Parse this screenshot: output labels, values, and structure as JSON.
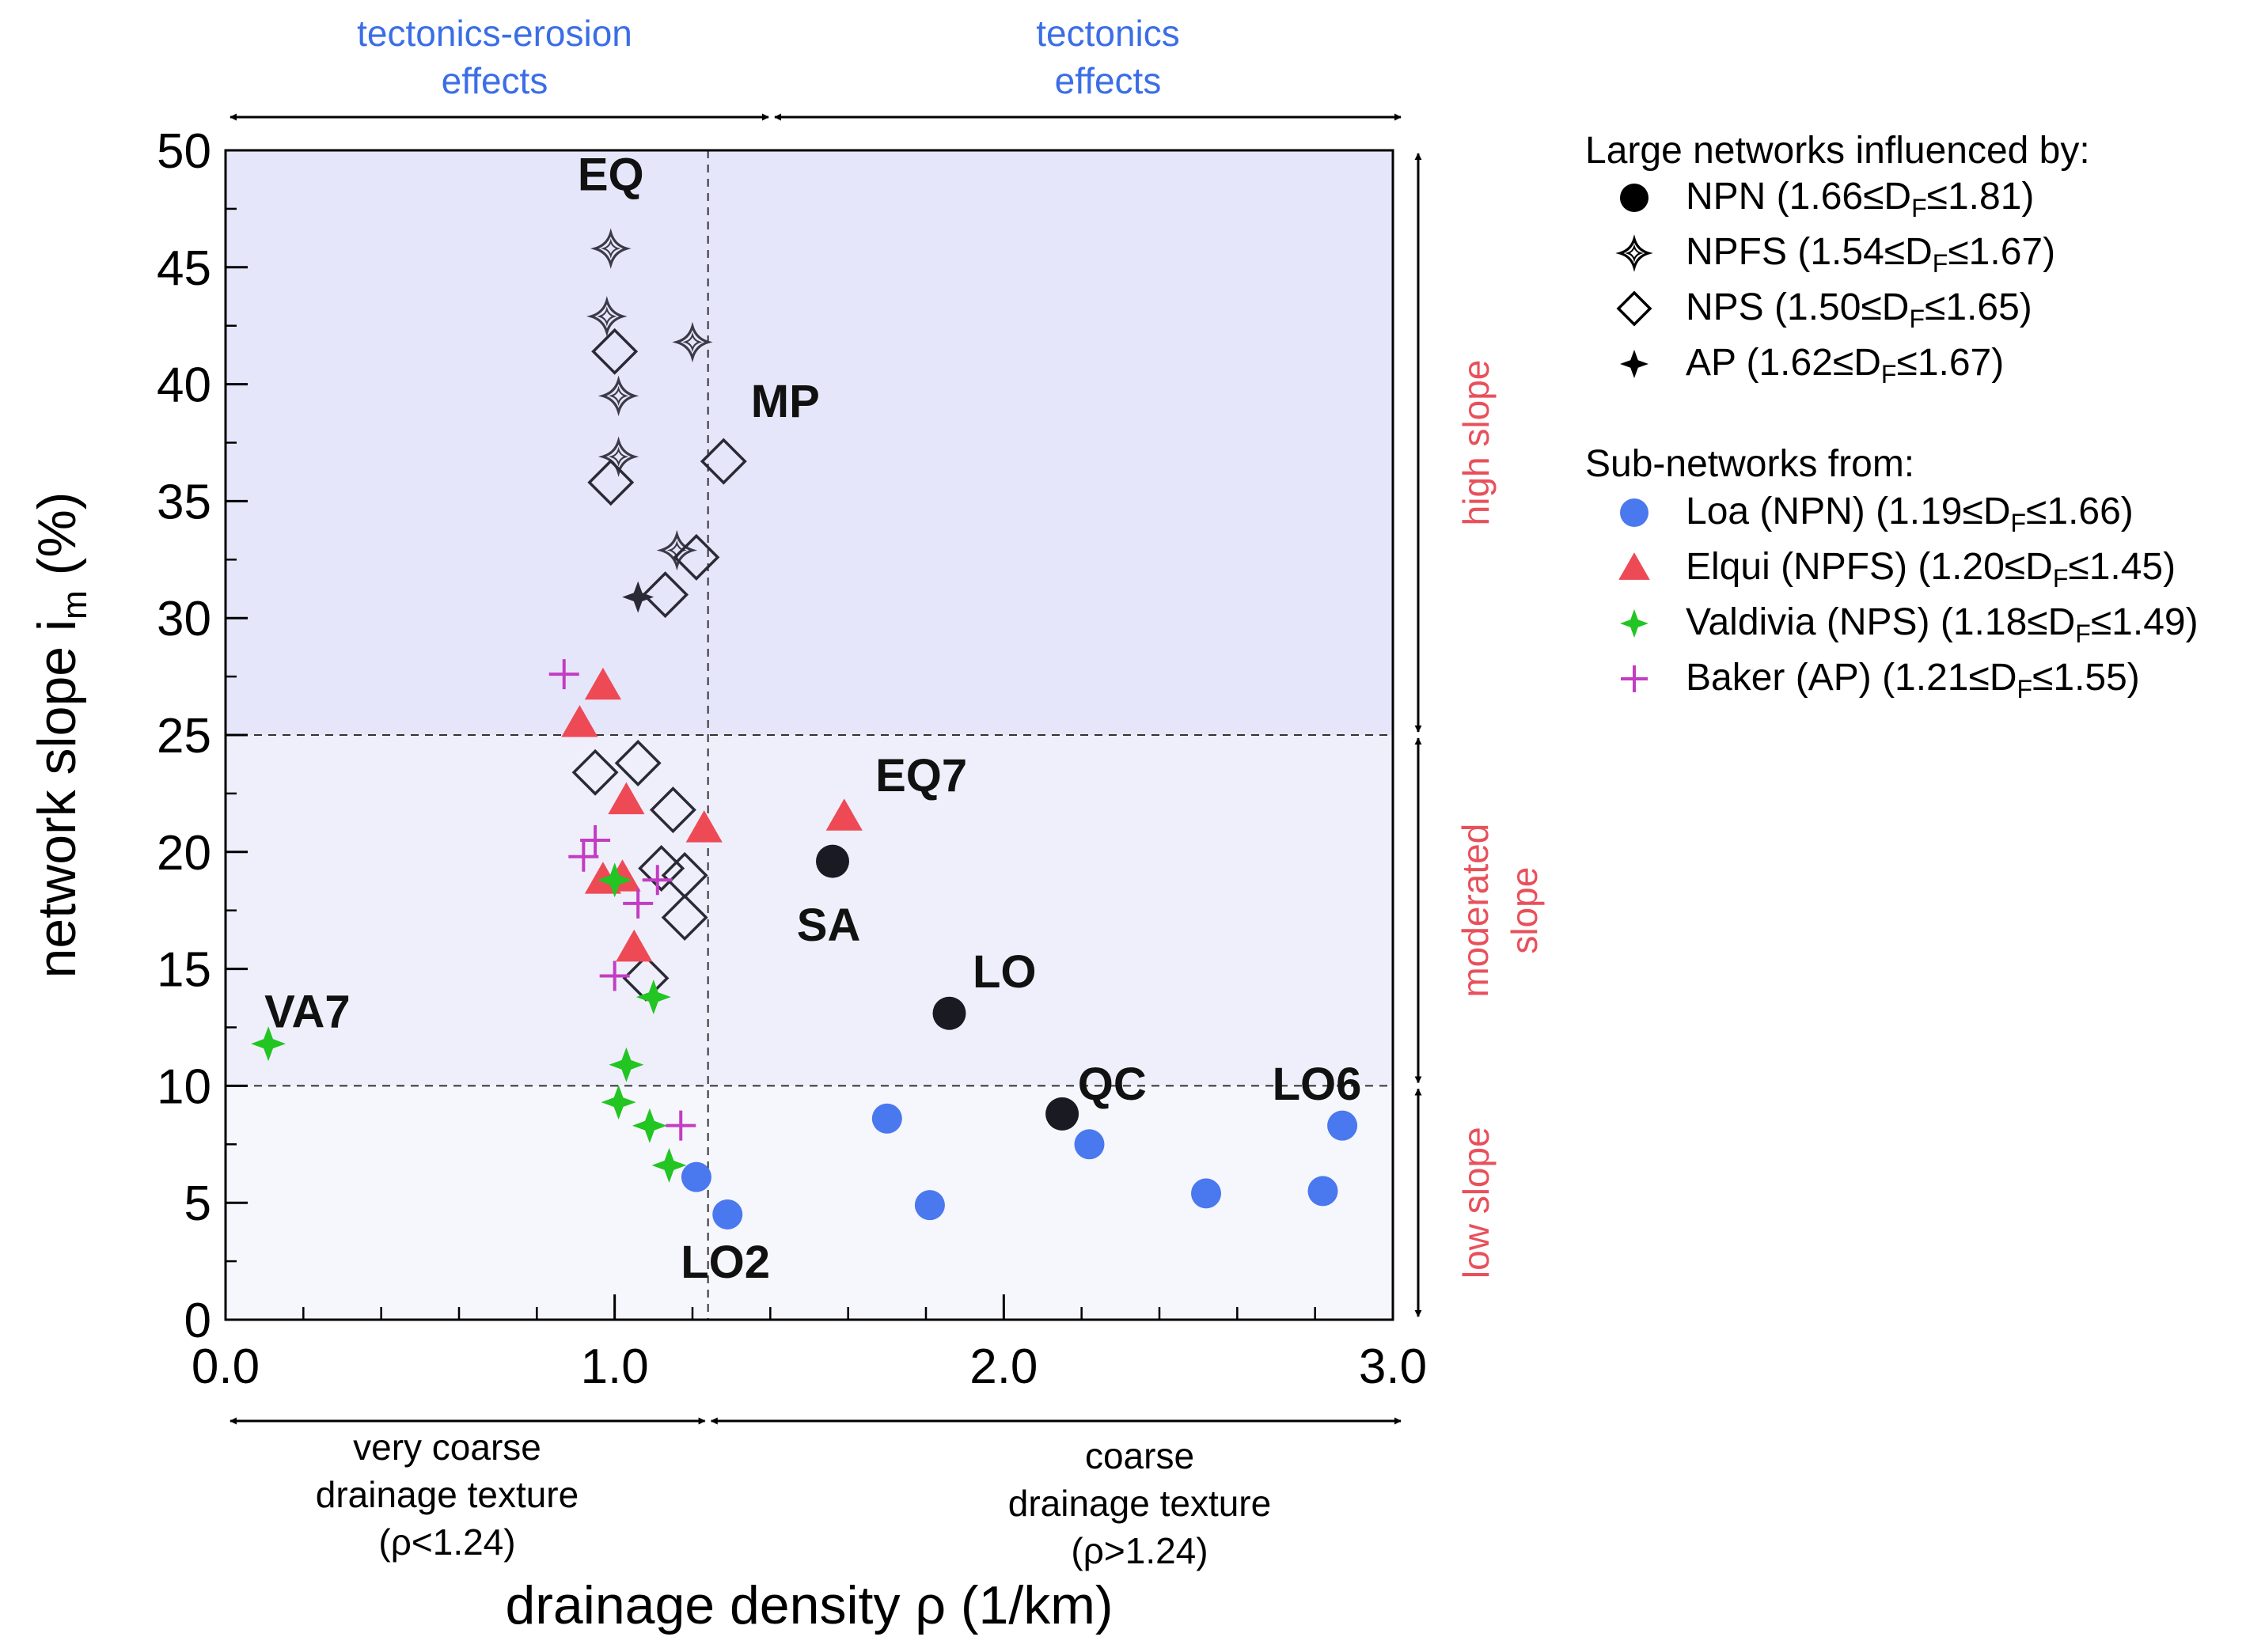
{
  "chart_data": {
    "type": "scatter",
    "xlabel": "drainage density ρ (1/km)",
    "ylabel_main": "network slope i",
    "ylabel_sub": "m",
    "ylabel_unit": " (%)",
    "xlim": [
      0,
      3.0
    ],
    "ylim": [
      0,
      50
    ],
    "x_ticks": [
      {
        "value": 0.0,
        "label": "0.0"
      },
      {
        "value": 1.0,
        "label": "1.0"
      },
      {
        "value": 2.0,
        "label": "2.0"
      },
      {
        "value": 3.0,
        "label": "3.0"
      }
    ],
    "x_minor_step": 0.2,
    "y_ticks": [
      0,
      5,
      10,
      15,
      20,
      25,
      30,
      35,
      40,
      45,
      50
    ],
    "thresholds": {
      "x": 1.24,
      "y": [
        10,
        25
      ]
    },
    "region_colors": {
      "high": "#e6e6fb",
      "moderate": "#efeffc",
      "low": "#f6f6fd"
    },
    "top_annotations": [
      {
        "lines": [
          "tectonics-erosion",
          "effects"
        ],
        "color": "#3b6ee6"
      },
      {
        "lines": [
          "tectonics",
          "effects"
        ],
        "color": "#3b6ee6"
      }
    ],
    "bottom_annotations": [
      {
        "lines": [
          "very coarse",
          "drainage texture",
          "(ρ<1.24)"
        ]
      },
      {
        "lines": [
          "coarse",
          "drainage texture",
          "(ρ>1.24)"
        ]
      }
    ],
    "right_annotations": [
      {
        "lines": [
          "high slope"
        ],
        "color": "#e8505b"
      },
      {
        "lines": [
          "moderated",
          "slope"
        ],
        "color": "#e8505b"
      },
      {
        "lines": [
          "low slope"
        ],
        "color": "#e8505b"
      }
    ],
    "legend": {
      "position": "right",
      "group1_title": "Large networks influenced by:",
      "group2_title": "Sub-networks from:",
      "group1": [
        {
          "marker": "circle",
          "color": "#000000",
          "name": "NPN",
          "dmin": "1.66",
          "dmax": "1.81"
        },
        {
          "marker": "star4",
          "color": "#000000",
          "name": "NPFS",
          "dmin": "1.54",
          "dmax": "1.67"
        },
        {
          "marker": "diamond",
          "color": "#000000",
          "name": "NPS",
          "dmin": "1.50",
          "dmax": "1.65"
        },
        {
          "marker": "star4filled",
          "color": "#000000",
          "name": "AP",
          "dmin": "1.62",
          "dmax": "1.67"
        }
      ],
      "group2": [
        {
          "marker": "circle",
          "color": "#4a78ee",
          "name": "Loa (NPN)",
          "dmin": "1.19",
          "dmax": "1.66"
        },
        {
          "marker": "triangle",
          "color": "#ee4a55",
          "name": "Elqui (NPFS)",
          "dmin": "1.20",
          "dmax": "1.45"
        },
        {
          "marker": "star4filled",
          "color": "#22c522",
          "name": "Valdivia (NPS)",
          "dmin": "1.18",
          "dmax": "1.49"
        },
        {
          "marker": "plus",
          "color": "#c23dc2",
          "name": "Baker (AP)",
          "dmin": "1.21",
          "dmax": "1.55"
        }
      ]
    },
    "series": [
      {
        "name": "NPN",
        "marker": "circle",
        "color": "#1a1a22",
        "size": 21,
        "points": [
          [
            1.56,
            19.6
          ],
          [
            1.86,
            13.1
          ],
          [
            2.15,
            8.8
          ]
        ]
      },
      {
        "name": "NPFS",
        "marker": "star4",
        "color": "#3a3a48",
        "size": 20,
        "points": [
          [
            0.99,
            45.8
          ],
          [
            0.98,
            42.9
          ],
          [
            1.01,
            39.5
          ],
          [
            1.01,
            36.9
          ],
          [
            1.2,
            41.8
          ],
          [
            1.16,
            32.9
          ]
        ]
      },
      {
        "name": "NPS",
        "marker": "diamond",
        "color": "#2a2a36",
        "size": 27,
        "points": [
          [
            1.0,
            41.4
          ],
          [
            1.28,
            36.7
          ],
          [
            0.99,
            35.8
          ],
          [
            1.21,
            32.6
          ],
          [
            1.13,
            31.0
          ],
          [
            0.95,
            23.4
          ],
          [
            1.06,
            23.8
          ],
          [
            1.15,
            21.8
          ],
          [
            1.12,
            19.3
          ],
          [
            1.18,
            19.0
          ],
          [
            1.18,
            17.2
          ],
          [
            1.08,
            14.6
          ]
        ]
      },
      {
        "name": "AP",
        "marker": "star4filled",
        "color": "#2a2a36",
        "size": 20,
        "points": [
          [
            1.06,
            30.9
          ]
        ]
      },
      {
        "name": "Loa (NPN)",
        "marker": "circle",
        "color": "#4a78ee",
        "size": 19,
        "points": [
          [
            1.21,
            6.1
          ],
          [
            1.29,
            4.5
          ],
          [
            1.7,
            8.6
          ],
          [
            1.81,
            4.9
          ],
          [
            2.22,
            7.5
          ],
          [
            2.52,
            5.4
          ],
          [
            2.82,
            5.5
          ],
          [
            2.87,
            8.3
          ]
        ]
      },
      {
        "name": "Elqui (NPFS)",
        "marker": "triangle",
        "color": "#ee4a55",
        "size": 21,
        "points": [
          [
            0.97,
            27.1
          ],
          [
            0.91,
            25.5
          ],
          [
            1.03,
            22.2
          ],
          [
            1.23,
            21.0
          ],
          [
            1.59,
            21.5
          ],
          [
            0.97,
            18.8
          ],
          [
            1.02,
            18.9
          ],
          [
            1.05,
            15.9
          ]
        ]
      },
      {
        "name": "Valdivia (NPS)",
        "marker": "star4filled",
        "color": "#22c522",
        "size": 22,
        "points": [
          [
            0.11,
            11.8
          ],
          [
            1.0,
            18.8
          ],
          [
            1.1,
            13.8
          ],
          [
            1.03,
            10.9
          ],
          [
            1.01,
            9.3
          ],
          [
            1.09,
            8.3
          ],
          [
            1.14,
            6.6
          ]
        ]
      },
      {
        "name": "Baker (AP)",
        "marker": "plus",
        "color": "#c23dc2",
        "size": 19,
        "points": [
          [
            0.87,
            27.6
          ],
          [
            0.92,
            19.8
          ],
          [
            0.95,
            20.5
          ],
          [
            1.11,
            18.8
          ],
          [
            1.06,
            17.8
          ],
          [
            1.0,
            14.7
          ],
          [
            1.17,
            8.3
          ]
        ]
      }
    ],
    "point_labels": [
      {
        "text": "EQ",
        "x": 0.99,
        "y": 48.3,
        "anchor": "middle"
      },
      {
        "text": "MP",
        "x": 1.35,
        "y": 38.6,
        "anchor": "start"
      },
      {
        "text": "EQ7",
        "x": 1.67,
        "y": 22.6,
        "anchor": "start"
      },
      {
        "text": "SA",
        "x": 1.55,
        "y": 16.2,
        "anchor": "middle"
      },
      {
        "text": "LO",
        "x": 1.92,
        "y": 14.2,
        "anchor": "start"
      },
      {
        "text": "VA7",
        "x": 0.1,
        "y": 12.5,
        "anchor": "start"
      },
      {
        "text": "QC",
        "x": 2.19,
        "y": 9.4,
        "anchor": "start"
      },
      {
        "text": "LO6",
        "x": 2.69,
        "y": 9.4,
        "anchor": "start"
      },
      {
        "text": "LO2",
        "x": 1.17,
        "y": 1.8,
        "anchor": "start"
      }
    ]
  }
}
